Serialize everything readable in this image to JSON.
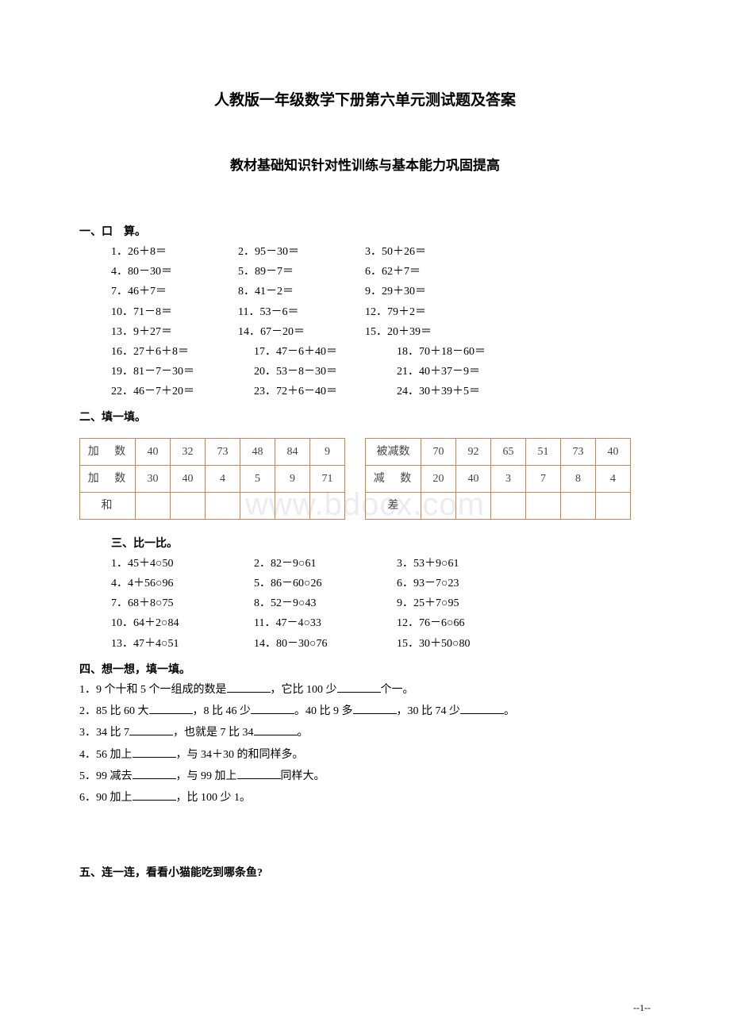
{
  "title_main": "人教版一年级数学下册第六单元测试题及答案",
  "title_sub": "教材基础知识针对性训练与基本能力巩固提高",
  "s1": {
    "header": "一、口　算。",
    "rows": [
      [
        "1．26＋8＝",
        "2．95－30＝",
        "3．50＋26＝"
      ],
      [
        "4．80－30＝",
        "5．89－7＝",
        "6．62＋7＝"
      ],
      [
        "7．46＋7＝",
        " 8．41－2＝",
        "9．29＋30＝"
      ],
      [
        "10．71－8＝",
        "11．53－6＝",
        "12．79＋2＝"
      ],
      [
        "13．9＋27＝",
        "14．67－20＝",
        "15．20＋39＝"
      ]
    ],
    "rows2": [
      [
        "16．27＋6＋8＝",
        "17．47－6＋40＝",
        "18．70＋18－60＝"
      ],
      [
        "19．81－7－30＝",
        "20．53－8－30＝",
        "21．40＋37－9＝"
      ],
      [
        "22．46－7＋20＝",
        "23．72＋6－40＝",
        "24．30＋39＋5＝"
      ]
    ]
  },
  "s2": {
    "header": "二、填一填。",
    "table1": {
      "rows": [
        {
          "label": "加 数",
          "cells": [
            "40",
            "32",
            "73",
            "48",
            "84",
            "9"
          ]
        },
        {
          "label": "加 数",
          "cells": [
            "30",
            "40",
            "4",
            "5",
            "9",
            "71"
          ]
        },
        {
          "label": "和",
          "cells": [
            "",
            "",
            "",
            "",
            "",
            ""
          ]
        }
      ]
    },
    "table2": {
      "rows": [
        {
          "label": "被减数",
          "cells": [
            "70",
            "92",
            "65",
            "51",
            "73",
            "40"
          ]
        },
        {
          "label": "减 数",
          "cells": [
            "20",
            "40",
            "3",
            "7",
            "8",
            "4"
          ]
        },
        {
          "label": "差",
          "cells": [
            "",
            "",
            "",
            "",
            "",
            ""
          ]
        }
      ]
    }
  },
  "s3": {
    "header": "三、比一比。",
    "rows": [
      [
        "1．45＋4○50",
        "2．82－9○61",
        "3．53＋9○61"
      ],
      [
        "4．4＋56○96",
        "5．86－60○26",
        "6．93－7○23"
      ],
      [
        "7．68＋8○75",
        "8．52－9○43",
        "9．25＋7○95"
      ],
      [
        "10．64＋2○84",
        "11．47－4○33",
        "12．76－6○66"
      ],
      [
        "13．47＋4○51",
        "14．80－30○76",
        "15．30＋50○80"
      ]
    ]
  },
  "s4": {
    "header": "四、想一想，填一填。",
    "l1a": "1．9 个十和 5 个一组成的数是",
    "l1b": "，它比 100 少",
    "l1c": "个一。",
    "l2a": "2．85 比 60 大",
    "l2b": "，8 比 46 少",
    "l2c": "。40 比 9 多",
    "l2d": "，30 比 74 少",
    "l2e": "。",
    "l3a": "3．34 比 7",
    "l3b": "，也就是 7 比 34",
    "l3c": "。",
    "l4a": "4．56 加上",
    "l4b": "，与 34＋30 的和同样多。",
    "l5a": "5．99 减去",
    "l5b": "，与 99 加上",
    "l5c": "同样大。",
    "l6a": "6．90 加上",
    "l6b": "，比 100 少 1。"
  },
  "s5": {
    "header": "五、连一连，看看小猫能吃到哪条鱼?"
  },
  "watermark": "www.bdocx.com",
  "page_num": "--1--"
}
